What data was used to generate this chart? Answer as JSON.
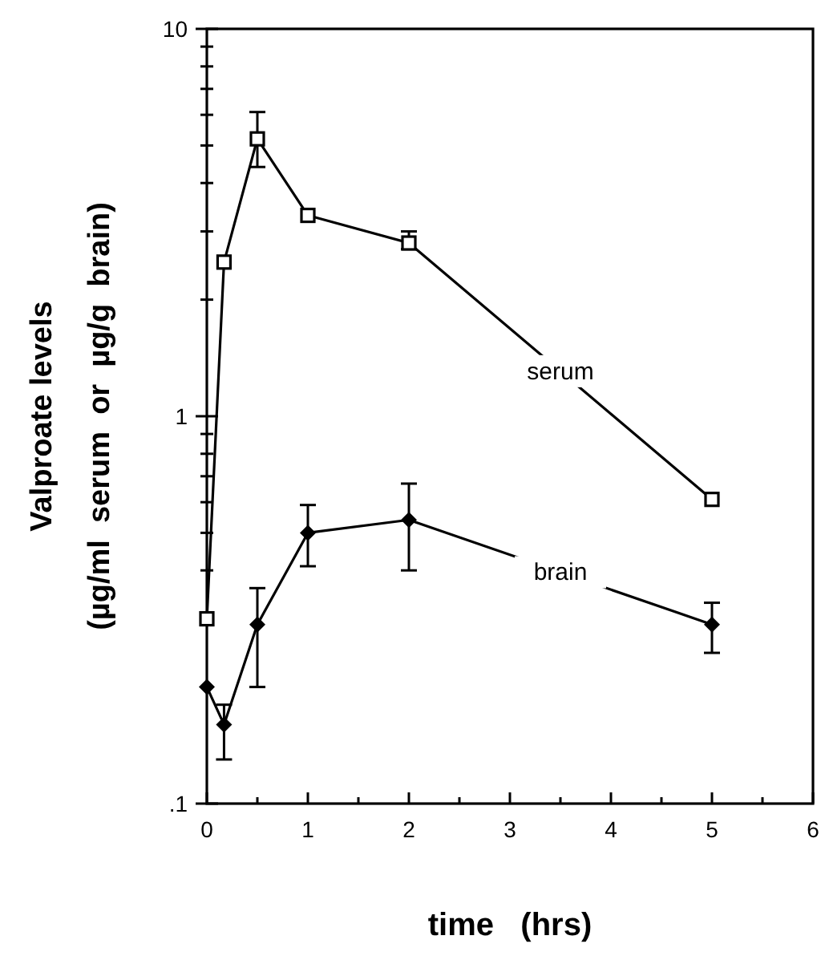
{
  "chart_data": {
    "type": "line",
    "xlabel": "time   (hrs)",
    "ylabel": "Valproate levels\n(µg/ml  serum  or  µg/g  brain)",
    "log": "y",
    "xlim": [
      0,
      6
    ],
    "ylim": [
      0.1,
      10
    ],
    "xticks": [
      0,
      {
        "value": 0.5,
        "label": null
      },
      1,
      {
        "value": 1.5,
        "label": null
      },
      2,
      {
        "value": 2.5,
        "label": null
      },
      3,
      {
        "value": 3.5,
        "label": null
      },
      4,
      {
        "value": 4.5,
        "label": null
      },
      5,
      {
        "value": 5.5,
        "label": null
      },
      6
    ],
    "yticks": [
      {
        "value": 0.1,
        "label": ".1"
      },
      {
        "value": 0.2,
        "label": null
      },
      {
        "value": 0.3,
        "label": null
      },
      {
        "value": 0.4,
        "label": null
      },
      {
        "value": 0.5,
        "label": null
      },
      {
        "value": 0.6,
        "label": null
      },
      {
        "value": 0.7,
        "label": null
      },
      {
        "value": 0.8,
        "label": null
      },
      {
        "value": 0.9,
        "label": null
      },
      1,
      {
        "value": 2,
        "label": null
      },
      {
        "value": 3,
        "label": null
      },
      {
        "value": 4,
        "label": null
      },
      {
        "value": 5,
        "label": null
      },
      {
        "value": 6,
        "label": null
      },
      {
        "value": 7,
        "label": null
      },
      {
        "value": 8,
        "label": null
      },
      {
        "value": 9,
        "label": null
      },
      10
    ],
    "grid": false,
    "series": [
      {
        "name": "serum",
        "color": "#000000",
        "marker": "square",
        "x": [
          0,
          0.17,
          0.5,
          1,
          2,
          5
        ],
        "values": [
          0.3,
          2.5,
          5.2,
          3.3,
          2.8,
          0.61
        ],
        "errors": [
          null,
          null,
          [
            4.4,
            6.1
          ],
          null,
          [
            2.7,
            3.0
          ],
          null
        ]
      },
      {
        "name": "brain",
        "color": "#000000",
        "marker": "diamond",
        "x": [
          0,
          0.17,
          0.5,
          1,
          2,
          5
        ],
        "values": [
          0.2,
          0.16,
          0.29,
          0.5,
          0.54,
          0.29
        ],
        "errors": [
          null,
          [
            0.13,
            0.18
          ],
          [
            0.2,
            0.36
          ],
          [
            0.41,
            0.59
          ],
          [
            0.4,
            0.67
          ],
          [
            0.245,
            0.33
          ]
        ]
      }
    ]
  }
}
